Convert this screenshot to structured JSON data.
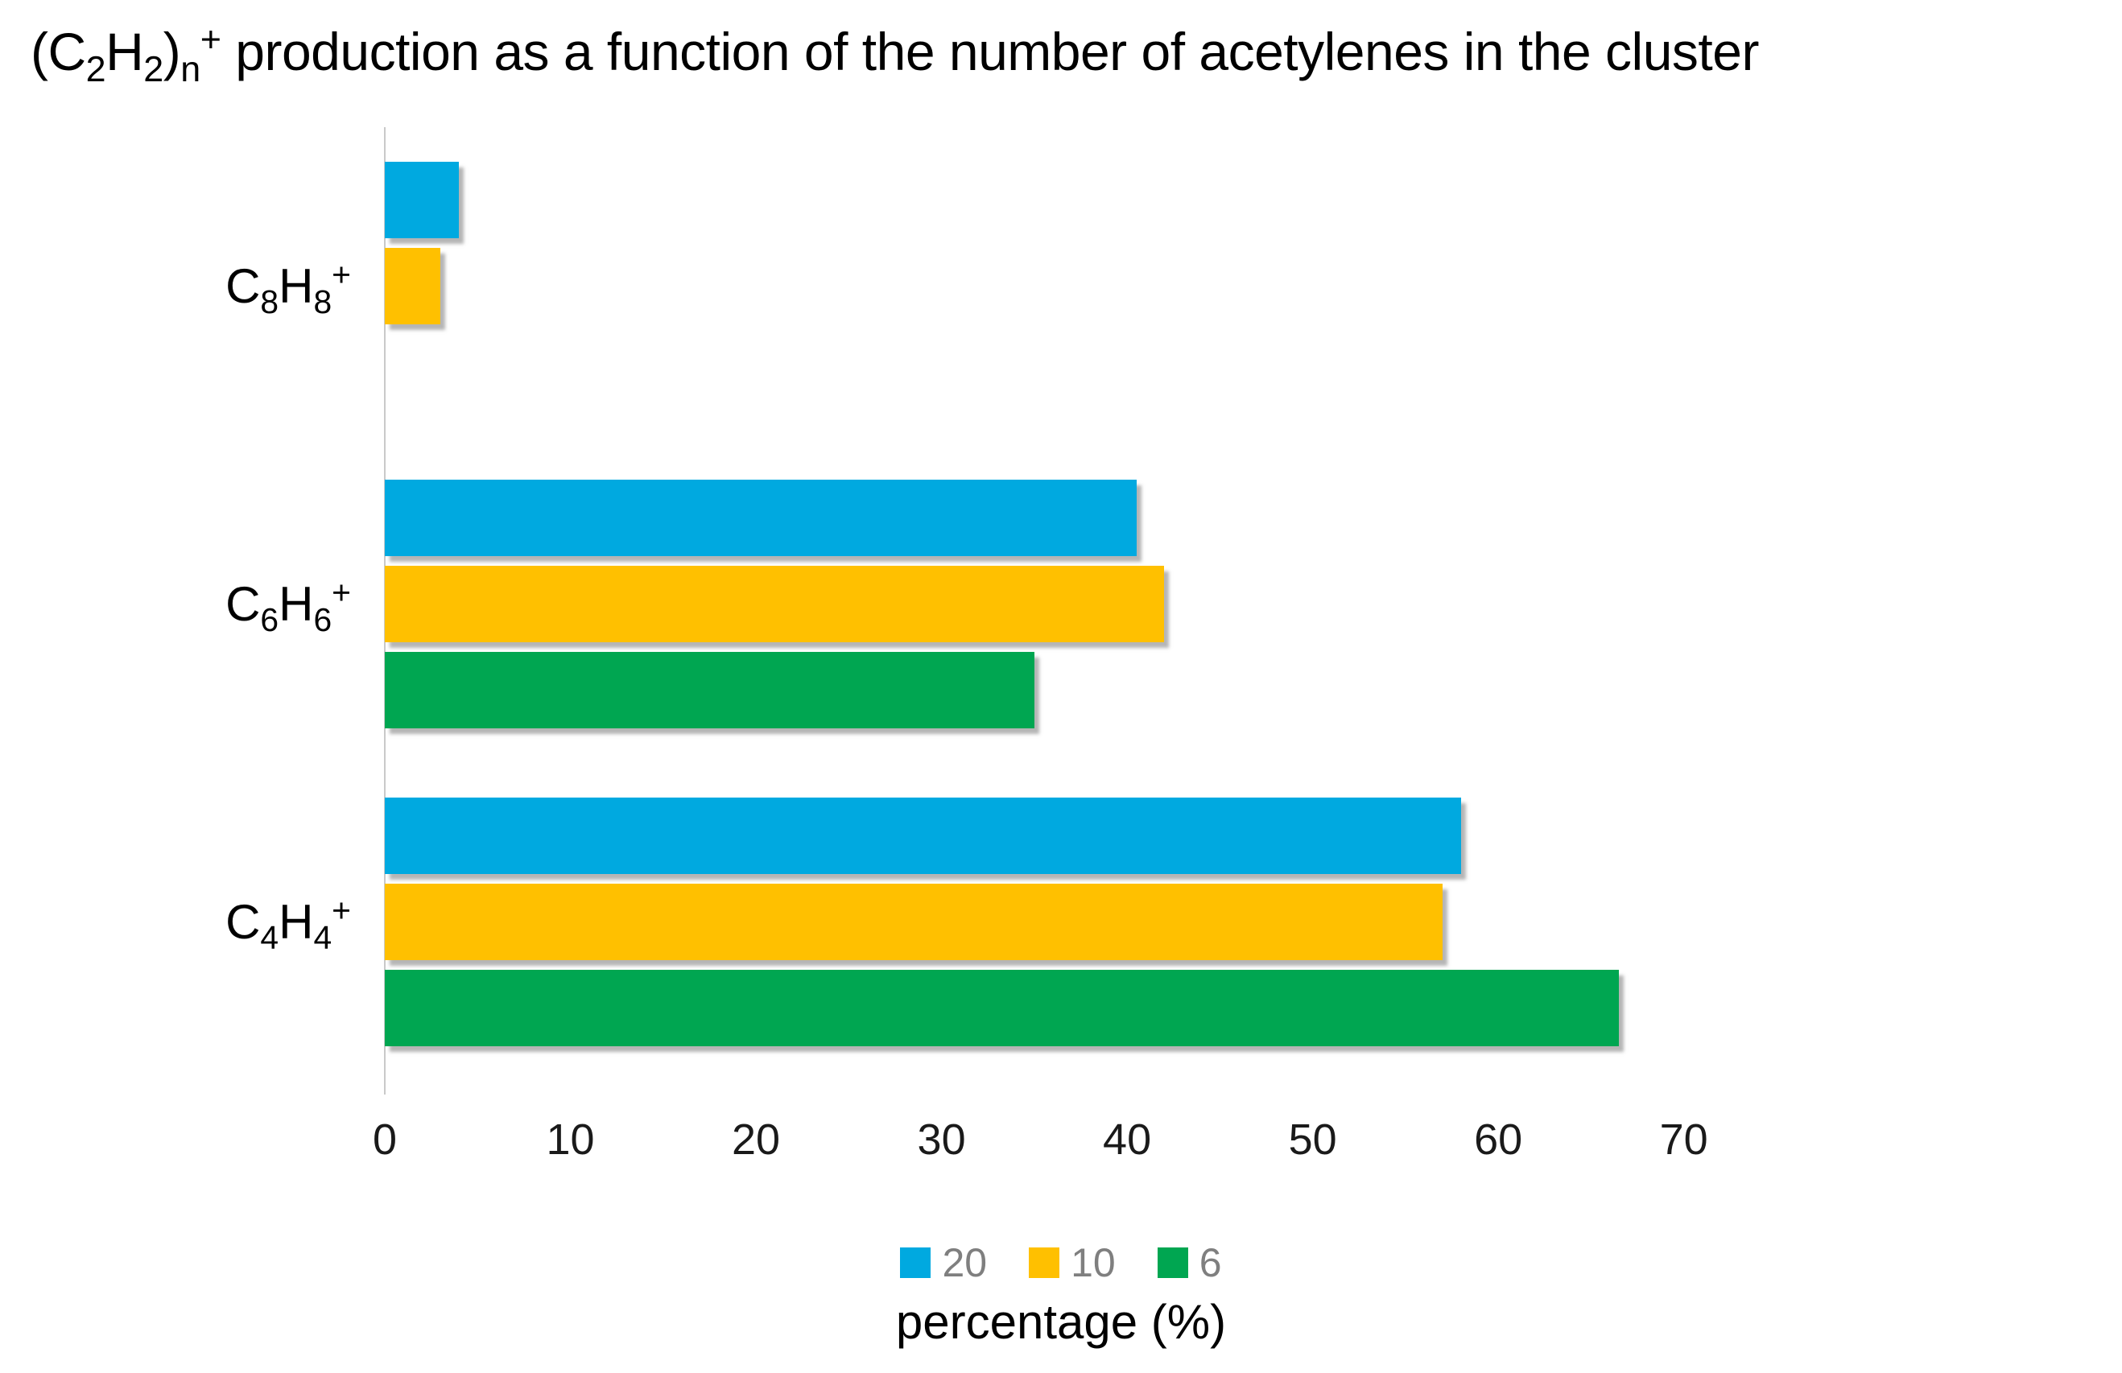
{
  "chart_data": {
    "type": "bar",
    "orientation": "horizontal",
    "title": "(C~2~H~2~)~n~^+^ production as a function of the number of acetylenes in the cluster",
    "xlabel": "percentage (%)",
    "categories": [
      {
        "id": "C8H8",
        "label": "C~8~H~8~^+^"
      },
      {
        "id": "C6H6",
        "label": "C~6~H~6~^+^"
      },
      {
        "id": "C4H4",
        "label": "C~4~H~4~^+^"
      }
    ],
    "series": [
      {
        "name": "20",
        "color": "#00A9E0",
        "values": [
          4,
          40.5,
          58
        ]
      },
      {
        "name": "10",
        "color": "#FFC000",
        "values": [
          3,
          42,
          57
        ]
      },
      {
        "name": "6",
        "color": "#00A651",
        "values": [
          0,
          35,
          66.5
        ]
      }
    ],
    "x_ticks": [
      0,
      10,
      20,
      30,
      40,
      50,
      60,
      70
    ],
    "xlim": [
      0,
      76
    ],
    "grid": false,
    "legend_position": "bottom",
    "axis_line_color": "#C9C9C9",
    "legend_text_color": "#7F7F7F"
  }
}
